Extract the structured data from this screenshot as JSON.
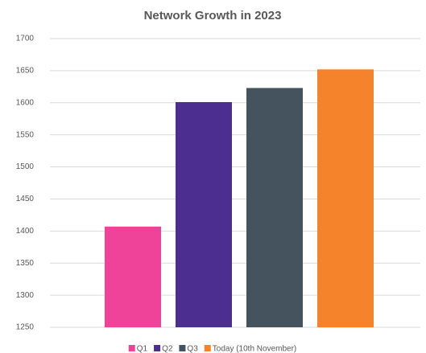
{
  "chart_data": {
    "type": "bar",
    "title": "Network Growth in 2023",
    "categories": [
      null
    ],
    "series": [
      {
        "name": "Q1",
        "color": "#ef4399",
        "values": [
          1407
        ]
      },
      {
        "name": "Q2",
        "color": "#4b2e90",
        "values": [
          1601
        ]
      },
      {
        "name": "Q3",
        "color": "#44535e",
        "values": [
          1623
        ]
      },
      {
        "name": "Today (10th November)",
        "color": "#f5832b",
        "values": [
          1652
        ]
      }
    ],
    "ylim": [
      1250,
      1700
    ],
    "yticks": [
      1250,
      1300,
      1350,
      1400,
      1450,
      1500,
      1550,
      1600,
      1650,
      1700
    ],
    "grid": true,
    "legend": "bottom"
  }
}
